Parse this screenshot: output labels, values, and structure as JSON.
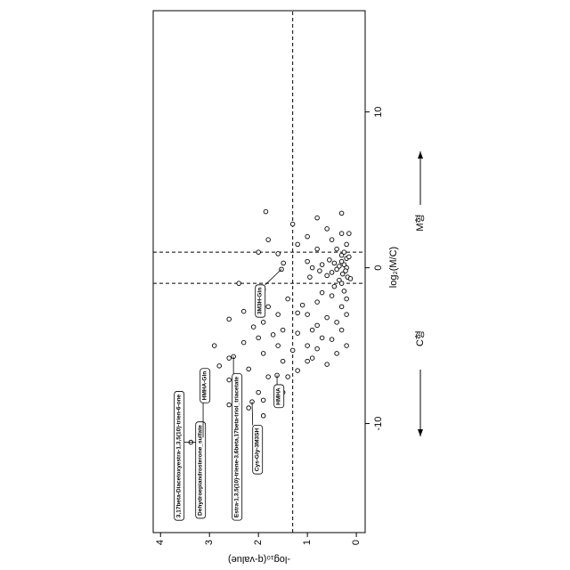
{
  "chart_data": {
    "type": "scatter",
    "xlabel": "log₂(M/C)",
    "ylabel": "-log₁₀(q-value)",
    "left_label": "C형",
    "right_label": "M형",
    "xlim": [
      -17,
      16.5
    ],
    "ylim": [
      -0.18,
      4.15
    ],
    "xticks": [
      -10,
      0,
      10
    ],
    "yticks": [
      0,
      1,
      2,
      3,
      4
    ],
    "hline": 1.3,
    "vlines": [
      -1,
      1
    ],
    "color": "#000000",
    "x": [
      0,
      0.2,
      -0.2,
      0.4,
      -0.4,
      0.6,
      -0.6,
      0.1,
      -0.1,
      0.3,
      -0.3,
      0.8,
      -0.8,
      1.0,
      -1.0,
      0.5,
      -0.5,
      0.2,
      -0.2,
      1.2,
      -1.2,
      0.7,
      -0.7,
      1.5,
      -1.5,
      0,
      0.4,
      -0.6,
      1.8,
      2.2,
      2.5,
      3.5,
      3.2,
      2.0,
      1.5,
      2.8,
      3.6,
      1.8,
      2.2,
      1.2,
      0.9,
      1.0,
      0.3,
      -1.8,
      -2.2,
      -2.5,
      -3.0,
      -3.2,
      -3.5,
      -4.0,
      -4.2,
      -4.5,
      -5.0,
      -5.5,
      -6.0,
      -2.0,
      -2.5,
      -3.0,
      -3.5,
      -4.0,
      -4.5,
      -5.0,
      -5.5,
      -6.0,
      -6.5,
      -7.0,
      -7.5,
      -8.0,
      -8.5,
      -3.8,
      -4.8,
      -5.8,
      -6.3,
      -7.2,
      -3.3,
      -1.4,
      -1.0,
      -2.8,
      -5.2,
      -4.6,
      -3.7,
      -2.9,
      -6.2,
      -5.8,
      -5.0,
      -4.0,
      -3.0,
      -2.0,
      -1.6,
      -2.4,
      -4.3,
      -5.3,
      -6.6,
      -7.0,
      -8.0,
      -9.0,
      -9.5,
      -8.8,
      -5.0,
      -11.2,
      -10.9,
      -11.0,
      -11.1,
      -5.7,
      -8.6,
      -6.9,
      -0.1
    ],
    "values": [
      0.2,
      0.25,
      0.22,
      0.3,
      0.28,
      0.2,
      0.18,
      0.35,
      0.4,
      0.45,
      0.5,
      0.3,
      0.35,
      0.25,
      0.3,
      0.55,
      0.6,
      0.7,
      0.75,
      0.4,
      0.45,
      0.15,
      0.12,
      0.2,
      0.25,
      0.9,
      1.0,
      0.95,
      0.5,
      0.3,
      0.6,
      0.3,
      0.8,
      1.0,
      1.2,
      1.3,
      1.85,
      1.8,
      0.15,
      0.8,
      1.6,
      2.0,
      1.49,
      0.5,
      0.8,
      0.3,
      1.0,
      0.6,
      0.4,
      0.9,
      1.2,
      0.7,
      1.0,
      0.4,
      1.0,
      1.4,
      1.8,
      1.6,
      1.9,
      1.5,
      2.0,
      1.6,
      1.9,
      1.5,
      2.2,
      1.8,
      2.4,
      2.0,
      1.9,
      2.1,
      2.3,
      2.6,
      2.8,
      2.6,
      2.6,
      1.9,
      2.4,
      2.3,
      0.8,
      0.5,
      0.8,
      1.2,
      0.6,
      0.9,
      0.2,
      0.3,
      0.2,
      0.2,
      0.7,
      1.1,
      1.7,
      1.3,
      1.2,
      1.4,
      1.5,
      2.2,
      1.9,
      2.6,
      2.9,
      3.38,
      3.13,
      3.13,
      3.13,
      2.51,
      2.13,
      1.62,
      1.53
    ],
    "annotations": [
      {
        "text": "3,17beta-Diacetoxyestra-1,3,5(10)-trien-6-one",
        "x": -11.2,
        "y": 3.38
      },
      {
        "text": "Dehydroepiandrosterone_sulfate",
        "x": -11.2,
        "y": 3.38
      },
      {
        "text": "HMHA-Gln",
        "x": -10.9,
        "y": 3.13
      },
      {
        "text": "Estra-1,3,5(10)-triene-3,6beta,17beta-triol_triacetate",
        "x": -5.7,
        "y": 2.51
      },
      {
        "text": "Cys-Gly-3M3SH",
        "x": -8.6,
        "y": 2.13
      },
      {
        "text": "HMHA",
        "x": -6.9,
        "y": 1.62
      },
      {
        "text": "3M3H-Gln",
        "x": -0.1,
        "y": 1.53
      }
    ]
  }
}
